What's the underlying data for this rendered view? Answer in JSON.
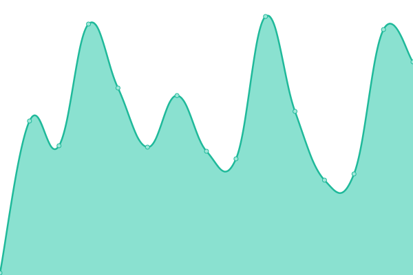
{
  "chart_data": {
    "type": "area",
    "values": [
      3,
      224,
      188,
      365,
      272,
      186,
      261,
      180,
      169,
      376,
      238,
      138,
      147,
      357,
      310
    ],
    "ylim": [
      0,
      400
    ],
    "color": "#1fb99a",
    "fill": "#8ae1d0",
    "point_fill": "#9ee6d8"
  }
}
